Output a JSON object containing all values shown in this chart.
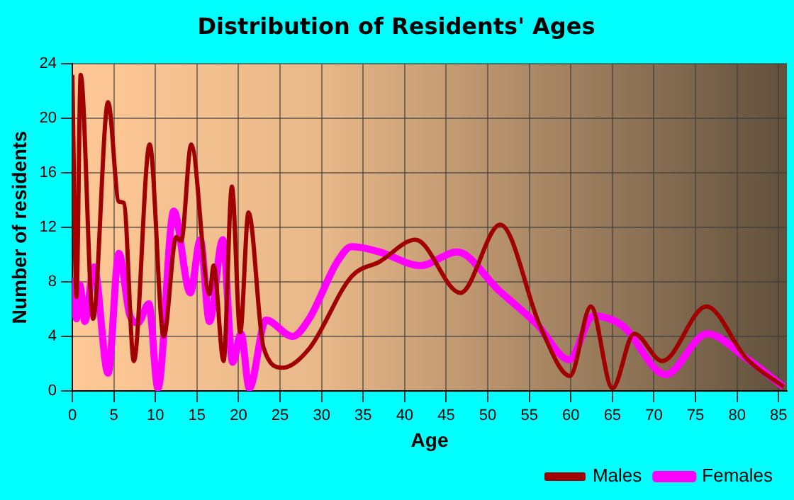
{
  "chart_data": {
    "type": "line",
    "title": "Distribution of Residents' Ages",
    "xlabel": "Age",
    "ylabel": "Number of residents",
    "xlim": [
      0,
      86
    ],
    "xticks": [
      0,
      5,
      10,
      15,
      20,
      25,
      30,
      35,
      40,
      45,
      50,
      55,
      60,
      65,
      70,
      75,
      80,
      85
    ],
    "ylim": [
      0,
      24
    ],
    "yticks": [
      0,
      4,
      8,
      12,
      16,
      20,
      24
    ],
    "grid": true,
    "legend": "bottom right",
    "marker": "none",
    "line_style": "solid",
    "series": [
      {
        "name": "Males",
        "color": "#a00000",
        "x": [
          0,
          0.5,
          1,
          2.5,
          4.3,
          5.6,
          6.2,
          7.4,
          9.3,
          11,
          12.5,
          13.1,
          14.3,
          16.5,
          17,
          18.2,
          19.2,
          20.2,
          21.2,
          23,
          25.3,
          28.5,
          33.6,
          37,
          41.3,
          46.7,
          51.5,
          56.4,
          59.9,
          62.4,
          65,
          67.6,
          71,
          76.3,
          81.1,
          85.6
        ],
        "values": [
          23.2,
          6.9,
          23.2,
          5.3,
          21.2,
          13.9,
          13.8,
          2.2,
          18.1,
          4,
          11.3,
          11,
          18.1,
          7.1,
          9.2,
          2.2,
          15,
          4.3,
          13.1,
          3.2,
          1.7,
          3.1,
          8.4,
          9.5,
          11.1,
          7.2,
          12.2,
          4.6,
          1.1,
          6.2,
          0.2,
          4.2,
          2.2,
          6.2,
          2.4,
          0.3
        ]
      },
      {
        "name": "Females",
        "color": "#ff00ff",
        "x": [
          0,
          0.5,
          0.9,
          1.5,
          2.6,
          4.3,
          5.6,
          6.9,
          7.9,
          9.2,
          10.3,
          12.2,
          14.2,
          15.4,
          16.5,
          18.1,
          19.3,
          20.3,
          21.3,
          23.3,
          26.5,
          28.5,
          31.9,
          33.6,
          37,
          41.9,
          46.3,
          51.3,
          55.9,
          59.8,
          62.7,
          66.2,
          71.4,
          76.4,
          81.1,
          85.6
        ],
        "values": [
          8.3,
          5.3,
          7.8,
          5.1,
          9.1,
          1.3,
          10.1,
          5.6,
          5,
          6.4,
          0.2,
          13.2,
          7.2,
          11.1,
          5.1,
          11.1,
          2.1,
          4.2,
          0.2,
          5.2,
          4,
          5.3,
          9.5,
          10.6,
          10.2,
          9.2,
          10.2,
          7.4,
          4.9,
          2.3,
          5.5,
          4.8,
          1.2,
          4.2,
          2.4,
          0.3
        ]
      }
    ]
  }
}
